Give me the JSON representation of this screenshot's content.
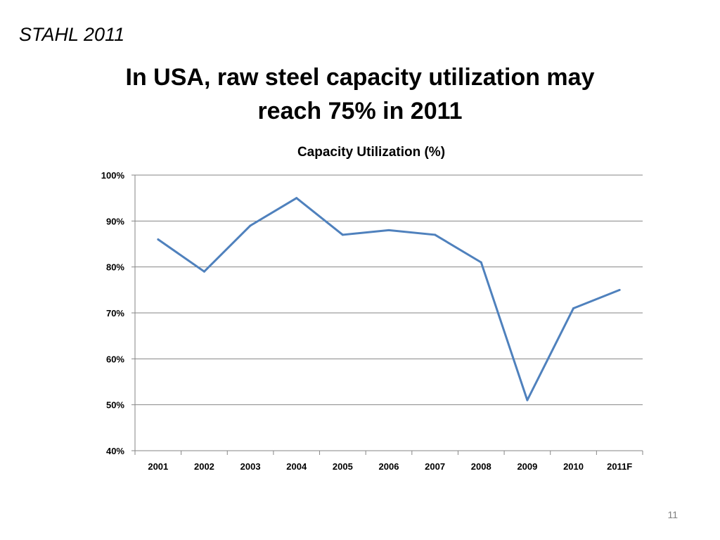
{
  "slide": {
    "event_label": "STAHL 2011",
    "title_line1": "In USA, raw steel capacity utilization may",
    "title_line2": "reach 75% in 2011",
    "page_number": "11"
  },
  "colors": {
    "series_line": "#4f81bd",
    "gridline": "#868686",
    "page_number": "#7f7f7f"
  },
  "chart_data": {
    "type": "line",
    "title": "Capacity Utilization (%)",
    "categories": [
      "2001",
      "2002",
      "2003",
      "2004",
      "2005",
      "2006",
      "2007",
      "2008",
      "2009",
      "2010",
      "2011F"
    ],
    "series": [
      {
        "values": [
          86,
          79,
          89,
          95,
          87,
          88,
          87,
          81,
          51,
          71,
          75
        ]
      }
    ],
    "ylim": [
      40,
      100
    ],
    "yticks": [
      "40%",
      "50%",
      "60%",
      "70%",
      "80%",
      "90%",
      "100%"
    ],
    "xlabel": "",
    "ylabel": "",
    "grid": true,
    "legend": "none"
  }
}
